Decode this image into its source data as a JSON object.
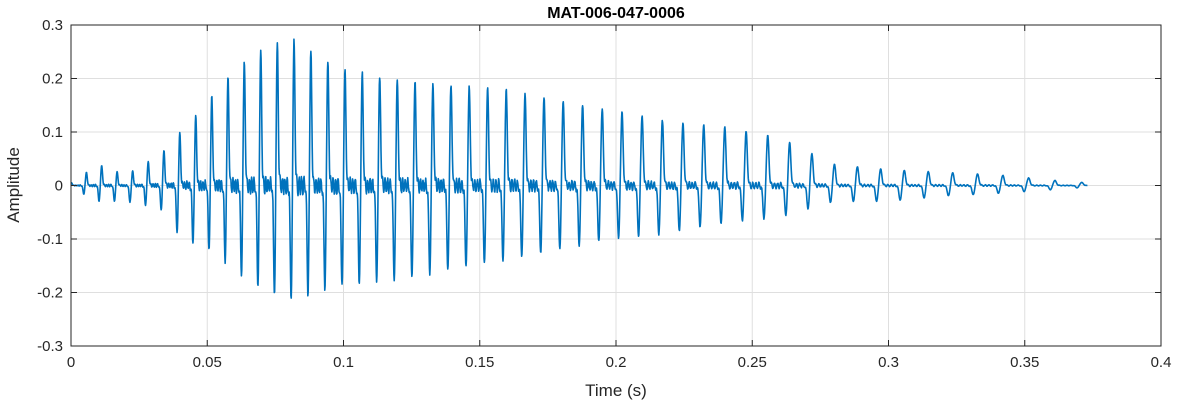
{
  "chart_data": {
    "type": "line",
    "title": "MAT-006-047-0006",
    "xlabel": "Time (s)",
    "ylabel": "Amplitude",
    "xlim": [
      0,
      0.4
    ],
    "ylim": [
      -0.3,
      0.3
    ],
    "xticks": [
      0,
      0.05,
      0.1,
      0.15,
      0.2,
      0.25,
      0.3,
      0.35,
      0.4
    ],
    "xtick_labels": [
      "0",
      "0.05",
      "0.1",
      "0.15",
      "0.2",
      "0.25",
      "0.3",
      "0.35",
      "0.4"
    ],
    "yticks": [
      -0.3,
      -0.2,
      -0.1,
      0,
      0.1,
      0.2,
      0.3
    ],
    "ytick_labels": [
      "-0.3",
      "-0.2",
      "-0.1",
      "0",
      "0.1",
      "0.2",
      "0.3"
    ],
    "grid": true,
    "series": [
      {
        "color": "#0072BD",
        "duration": 0.373,
        "envelope": {
          "t": [
            0,
            0.01,
            0.02,
            0.03,
            0.035,
            0.04,
            0.05,
            0.06,
            0.07,
            0.08,
            0.09,
            0.1,
            0.12,
            0.14,
            0.16,
            0.18,
            0.2,
            0.22,
            0.24,
            0.26,
            0.28,
            0.3,
            0.32,
            0.34,
            0.36,
            0.373
          ],
          "upper": [
            0.005,
            0.04,
            0.02,
            0.05,
            0.07,
            0.1,
            0.16,
            0.22,
            0.26,
            0.28,
            0.25,
            0.22,
            0.2,
            0.19,
            0.18,
            0.16,
            0.14,
            0.12,
            0.11,
            0.09,
            0.04,
            0.03,
            0.025,
            0.02,
            0.01,
            0.005
          ],
          "lower": [
            -0.005,
            -0.03,
            -0.03,
            -0.04,
            -0.05,
            -0.1,
            -0.12,
            -0.16,
            -0.2,
            -0.22,
            -0.2,
            -0.19,
            -0.18,
            -0.16,
            -0.14,
            -0.12,
            -0.1,
            -0.09,
            -0.07,
            -0.06,
            -0.03,
            -0.03,
            -0.02,
            -0.015,
            -0.008,
            -0.003
          ]
        }
      }
    ]
  }
}
